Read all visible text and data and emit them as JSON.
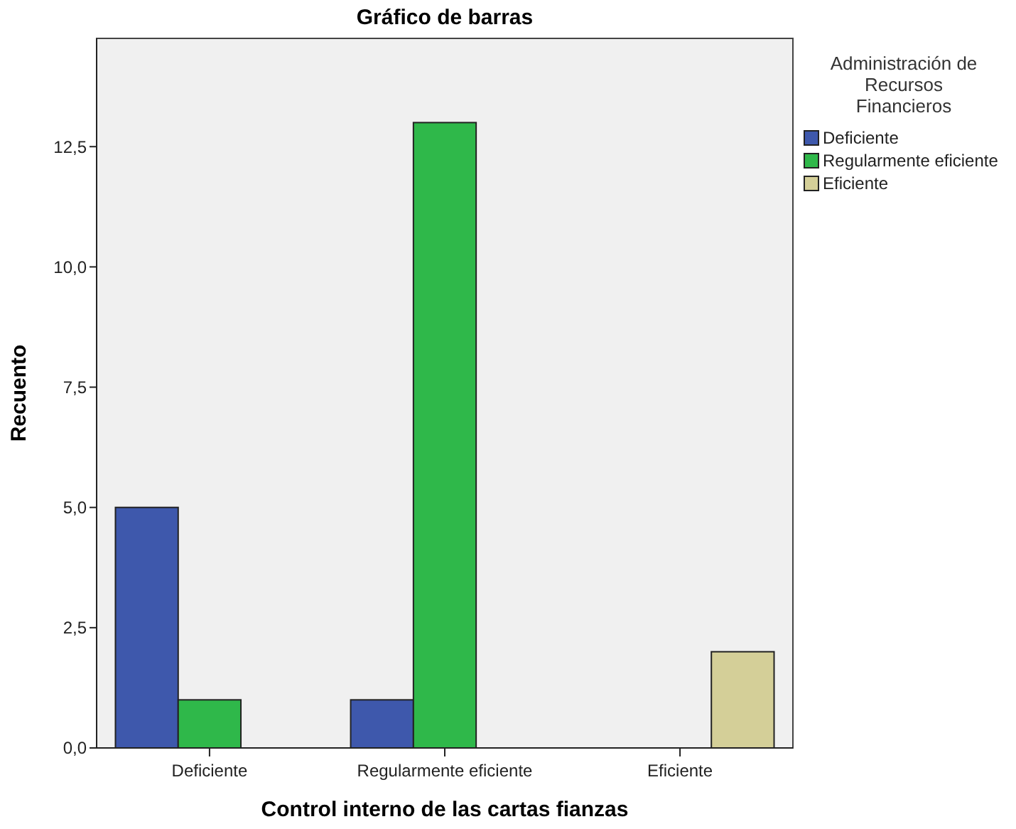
{
  "chart_data": {
    "type": "bar",
    "title": "Gráfico de barras",
    "xlabel": "Control interno de las cartas fianzas",
    "ylabel": "Recuento",
    "legend_title": "Administración de Recursos Financieros",
    "legend": "top right",
    "grid": false,
    "categories": [
      "Deficiente",
      "Regularmente eficiente",
      "Eficiente"
    ],
    "series": [
      {
        "name": "Deficiente",
        "color": "#3e58ac",
        "values": [
          5,
          1,
          null
        ]
      },
      {
        "name": "Regularmente eficiente",
        "color": "#2fb84a",
        "values": [
          1,
          13,
          null
        ]
      },
      {
        "name": "Eficiente",
        "color": "#d4cf98",
        "values": [
          null,
          null,
          2
        ]
      }
    ],
    "ylim": [
      0,
      14.75
    ],
    "yticks": [
      {
        "value": 0,
        "label": "0,0"
      },
      {
        "value": 2.5,
        "label": "2,5"
      },
      {
        "value": 5,
        "label": "5,0"
      },
      {
        "value": 7.5,
        "label": "7,5"
      },
      {
        "value": 10,
        "label": "10,0"
      },
      {
        "value": 12.5,
        "label": "12,5"
      }
    ]
  }
}
